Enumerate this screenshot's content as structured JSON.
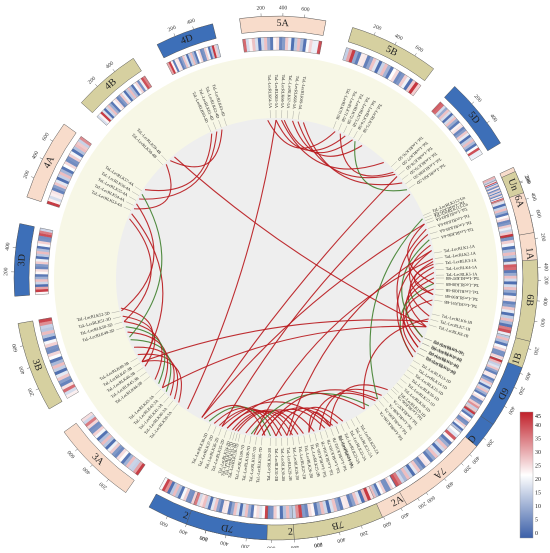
{
  "colors": {
    "ring_bg": "#f7f7e6",
    "inner_bg": "#eeeeee",
    "link_red": "#b8171c",
    "link_green": "#3f7f2e",
    "box_fill_A": "#f8dccb",
    "box_fill_B": "#d6d0a0",
    "box_fill_D": "#3d6fb8",
    "heat_low": "#3b5fa8",
    "heat_mid": "#ffffff",
    "heat_high": "#c0202a"
  },
  "chromosomes": [
    {
      "name": "1A",
      "start": 75,
      "end": 94,
      "ticks": [
        "200",
        "400"
      ]
    },
    {
      "name": "1B",
      "start": 100,
      "end": 117,
      "ticks": [
        "200",
        "400"
      ]
    },
    {
      "name": "1D",
      "start": 123,
      "end": 137,
      "ticks": [
        "200",
        "400"
      ]
    },
    {
      "name": "2A",
      "start": 143,
      "end": 160,
      "ticks": [
        "200",
        "400",
        "600"
      ]
    },
    {
      "name": "2B",
      "start": 166,
      "end": 186,
      "ticks": [
        "200",
        "400",
        "600"
      ]
    },
    {
      "name": "2D",
      "start": 191,
      "end": 209,
      "ticks": [
        "200",
        "400",
        "600"
      ]
    },
    {
      "name": "3A",
      "start": 215,
      "end": 234,
      "ticks": [
        "200",
        "400",
        "600"
      ]
    },
    {
      "name": "3B",
      "start": 240,
      "end": 260,
      "ticks": [
        "200",
        "400",
        "600"
      ]
    },
    {
      "name": "3D",
      "start": 266,
      "end": 282,
      "ticks": [
        "200",
        "400"
      ]
    },
    {
      "name": "4A",
      "start": 288,
      "end": 306,
      "ticks": [
        "200",
        "400",
        "600"
      ]
    },
    {
      "name": "4B",
      "start": 312,
      "end": 327,
      "ticks": [
        "200",
        "400"
      ]
    },
    {
      "name": "4D",
      "start": 333,
      "end": 346,
      "ticks": [
        "200",
        "400"
      ]
    },
    {
      "name": "5A",
      "start": 352,
      "end": 371,
      "ticks": [
        "200",
        "400",
        "600"
      ]
    },
    {
      "name": "5B",
      "start": 377,
      "end": 397,
      "ticks": [
        "200",
        "400",
        "600"
      ]
    },
    {
      "name": "5D",
      "start": 403,
      "end": 419,
      "ticks": [
        "200",
        "400"
      ]
    },
    {
      "name": "6A",
      "start": 425,
      "end": 440,
      "ticks": [
        "200",
        "400",
        "600"
      ]
    },
    {
      "name": "6B",
      "start": 446,
      "end": 464,
      "ticks": [
        "200",
        "400",
        "600"
      ]
    },
    {
      "name": "6D",
      "start": 470,
      "end": 484,
      "ticks": [
        "200",
        "400"
      ]
    },
    {
      "name": "7A",
      "start": 490,
      "end": 510,
      "ticks": [
        "200",
        "400",
        "600"
      ]
    },
    {
      "name": "7B",
      "start": 516,
      "end": 536,
      "ticks": [
        "200",
        "400",
        "600"
      ]
    },
    {
      "name": "7D",
      "start": 542,
      "end": 560,
      "ticks": [
        "200",
        "400",
        "600"
      ]
    },
    {
      "name": "Un",
      "start": 66,
      "end": 71,
      "ticks": [
        "200"
      ]
    }
  ],
  "gene_labels": [
    {
      "text": "TaL-LecRLK1-1A",
      "a": 81
    },
    {
      "text": "TaL-LecRLK2-1A",
      "a": 83
    },
    {
      "text": "TaL-LecRLK3-1A",
      "a": 85
    },
    {
      "text": "TaL-LecRLK4-1A",
      "a": 87
    },
    {
      "text": "TaL-LecRLK5-1A",
      "a": 89
    },
    {
      "text": "TaL-LecRLK6-1B",
      "a": 103
    },
    {
      "text": "TaL-LecRLK7-1B",
      "a": 105
    },
    {
      "text": "TaL-LecRLK8-1B",
      "a": 107
    },
    {
      "text": "TaL-LecRLK9-1D",
      "a": 112
    },
    {
      "text": "TaL-LecRLK10-1D",
      "a": 114
    },
    {
      "text": "TaL-LecRLK11-1D",
      "a": 116
    },
    {
      "text": "TaL-LecRLK12-1D",
      "a": 118
    },
    {
      "text": "TaL-LecRLK13-1D",
      "a": 121
    },
    {
      "text": "TaL-LecRLK14-1D",
      "a": 123
    },
    {
      "text": "TaL-LecRLK15-1D",
      "a": 125
    },
    {
      "text": "TaL-LecRLK16-1D",
      "a": 127
    },
    {
      "text": "TaL-LecRLK17-1D",
      "a": 129
    },
    {
      "text": "TaL-LecRLK18-1D",
      "a": 131
    },
    {
      "text": "TaL-LecRLK19-1D",
      "a": 133
    },
    {
      "text": "TaL-LecRLK20-2A",
      "a": 150
    },
    {
      "text": "TaL-LecRLK21-2A",
      "a": 152
    },
    {
      "text": "TaL-LecRLK22-2A",
      "a": 154
    },
    {
      "text": "TaL-LecRLK23-2A",
      "a": 156
    },
    {
      "text": "TaL-LecRLK24-2A",
      "a": 158
    },
    {
      "text": "TaL-LecRLK25-2B",
      "a": 168
    },
    {
      "text": "TaL-LecRLK26-2B",
      "a": 170
    },
    {
      "text": "TaL-LecRLK27-2B",
      "a": 172
    },
    {
      "text": "TaL-LecRLK28-2B",
      "a": 174
    },
    {
      "text": "TaL-LecRLK29-2B",
      "a": 176
    },
    {
      "text": "TaL-LecRLK30-2B",
      "a": 178
    },
    {
      "text": "TaL-LecRLK31-2B",
      "a": 180
    },
    {
      "text": "TaL-LecRLK32-2B",
      "a": 182
    },
    {
      "text": "TaL-LecRLK33-2D",
      "a": 194
    },
    {
      "text": "TaL-LecRLK34-2D",
      "a": 196
    },
    {
      "text": "TaL-LecRLK35-2D",
      "a": 198
    },
    {
      "text": "TaL-LecRLK36-2D",
      "a": 200
    },
    {
      "text": "TaL-LecRLK37-2D",
      "a": 202
    },
    {
      "text": "TaL-LecRLK38-2D",
      "a": 204
    },
    {
      "text": "TaL-LecRLK39-3A",
      "a": 218
    },
    {
      "text": "TaL-LecRLK40-3A",
      "a": 220
    },
    {
      "text": "TaL-LecRLK41-3A",
      "a": 222
    },
    {
      "text": "TaL-LecRLK42-3A",
      "a": 224
    },
    {
      "text": "TaL-LecRLK43-3A",
      "a": 226
    },
    {
      "text": "TaL-LecRLK44-3B",
      "a": 232
    },
    {
      "text": "TaL-LecRLK45-3B",
      "a": 234
    },
    {
      "text": "TaL-LecRLK46-3B",
      "a": 236
    },
    {
      "text": "TaL-LecRLK47-3B",
      "a": 238
    },
    {
      "text": "TaL-LecRLK48-3B",
      "a": 240
    },
    {
      "text": "TaL-LecRLK49-3D",
      "a": 252
    },
    {
      "text": "TaL-LecRLK50-3D",
      "a": 254
    },
    {
      "text": "TaL-LecRLK51-3D",
      "a": 256
    },
    {
      "text": "TaL-LecRLK52-3D",
      "a": 258
    },
    {
      "text": "TaL-LecRLK53-4A",
      "a": 295
    },
    {
      "text": "TaL-LecRLK54-4A",
      "a": 297
    },
    {
      "text": "TaL-LecRLK55-4A",
      "a": 299
    },
    {
      "text": "TaL-LecRLK56-4A",
      "a": 301
    },
    {
      "text": "TaL-LecRLK57-4A",
      "a": 303
    },
    {
      "text": "TaL-LecRLK58-4B",
      "a": 315
    },
    {
      "text": "TaL-LecRLK59-4B",
      "a": 317
    },
    {
      "text": "TaL-LecRLK60-4D",
      "a": 336
    },
    {
      "text": "TaL-LecRLK61-4D",
      "a": 338
    },
    {
      "text": "TaL-LecRLK62-4D",
      "a": 340
    },
    {
      "text": "TaL-LecRLK63-4D",
      "a": 342
    },
    {
      "text": "TaL-LecRLK64-5A",
      "a": 358
    },
    {
      "text": "TaL-LecRLK65-5A",
      "a": 360
    },
    {
      "text": "TaL-LecRLK66-5A",
      "a": 362
    },
    {
      "text": "TaL-LecRLK67-5A",
      "a": 364
    },
    {
      "text": "TaL-LecRLK68-5A",
      "a": 366
    },
    {
      "text": "TaL-LecRLK69-5A",
      "a": 368
    },
    {
      "text": "TaL-LecRLK70-5B",
      "a": 381
    },
    {
      "text": "TaL-LecRLK71-5B",
      "a": 383
    },
    {
      "text": "TaL-LecRLK72-5B",
      "a": 385
    },
    {
      "text": "TaL-LecRLK73-5B",
      "a": 387
    },
    {
      "text": "TaL-LecRLK74-5B",
      "a": 389
    },
    {
      "text": "TaL-LecRLK75-5B",
      "a": 391
    },
    {
      "text": "TaL-LecRLK76-5D",
      "a": 406
    },
    {
      "text": "TaL-LecRLK77-5D",
      "a": 408
    },
    {
      "text": "TaL-LecRLK78-5D",
      "a": 410
    },
    {
      "text": "TaL-LecRLK79-5D",
      "a": 412
    },
    {
      "text": "TaL-LecRLK80-5D",
      "a": 414
    },
    {
      "text": "TaL-LecRLK81-5D",
      "a": 416
    },
    {
      "text": "TaL-LecRLK82-6A",
      "a": 428
    },
    {
      "text": "TaL-LecRLK83-6A",
      "a": 430
    },
    {
      "text": "TaL-LecRLK84-6A",
      "a": 432
    },
    {
      "text": "TaL-LecRLK85-6A",
      "a": 434
    },
    {
      "text": "TaL-LecRLK86-6A",
      "a": 436
    },
    {
      "text": "TaL-LecRLK87-6B",
      "a": 450
    },
    {
      "text": "TaL-LecRLK88-6B",
      "a": 452
    },
    {
      "text": "TaL-LecRLK89-6B",
      "a": 454
    },
    {
      "text": "TaL-LecRLK90-6B",
      "a": 456
    },
    {
      "text": "TaL-LecRLK91-6B",
      "a": 458
    },
    {
      "text": "TaL-LecRLK92-6D",
      "a": 472
    },
    {
      "text": "TaL-LecRLK93-6D",
      "a": 474
    },
    {
      "text": "TaL-LecRLK94-6D",
      "a": 476
    },
    {
      "text": "TaL-LecRLK95-6D",
      "a": 478
    },
    {
      "text": "TaL-LecRLK96-7A",
      "a": 494
    },
    {
      "text": "TaL-LecRLK97-7A",
      "a": 496
    },
    {
      "text": "TaL-LecRLK98-7A",
      "a": 498
    },
    {
      "text": "TaL-LecRLK99-7A",
      "a": 500
    },
    {
      "text": "TaL-LecRLK100-7A",
      "a": 502
    },
    {
      "text": "TaL-LecRLK101-7B",
      "a": 518
    },
    {
      "text": "TaL-LecRLK102-7B",
      "a": 520
    },
    {
      "text": "TaL-LecRLK103-7B",
      "a": 522
    },
    {
      "text": "TaL-LecRLK104-7B",
      "a": 524
    },
    {
      "text": "TaL-LecRLK105-7B",
      "a": 526
    },
    {
      "text": "TaL-LecRLK106-7D",
      "a": 545
    },
    {
      "text": "TaL-LecRLK107-7D",
      "a": 547
    },
    {
      "text": "TaL-LecRLK108-7D",
      "a": 549
    },
    {
      "text": "TaL-LecRLK109-7D",
      "a": 551
    },
    {
      "text": "TaL-LecRLK110-7D",
      "a": 553
    },
    {
      "text": "TaL-LecRLK111-7D",
      "a": 555
    },
    {
      "text": "TaL-LecRLK112-Un",
      "a": 67
    },
    {
      "text": "TaL-LecRLK113-Un",
      "a": 69
    }
  ],
  "links": [
    {
      "from": 86,
      "to": 108,
      "color": "red"
    },
    {
      "from": 88,
      "to": 112,
      "color": "red"
    },
    {
      "from": 90,
      "to": 116,
      "color": "red"
    },
    {
      "from": 84,
      "to": 104,
      "color": "red"
    },
    {
      "from": 92,
      "to": 120,
      "color": "green"
    },
    {
      "from": 85,
      "to": 96,
      "color": "red"
    },
    {
      "from": 155,
      "to": 175,
      "color": "red"
    },
    {
      "from": 157,
      "to": 180,
      "color": "red"
    },
    {
      "from": 159,
      "to": 185,
      "color": "red"
    },
    {
      "from": 176,
      "to": 198,
      "color": "red"
    },
    {
      "from": 178,
      "to": 201,
      "color": "red"
    },
    {
      "from": 180,
      "to": 203,
      "color": "red"
    },
    {
      "from": 182,
      "to": 205,
      "color": "green"
    },
    {
      "from": 174,
      "to": 196,
      "color": "red"
    },
    {
      "from": 160,
      "to": 200,
      "color": "red"
    },
    {
      "from": 172,
      "to": 194,
      "color": "red"
    },
    {
      "from": 184,
      "to": 207,
      "color": "red"
    },
    {
      "from": 218,
      "to": 238,
      "color": "red"
    },
    {
      "from": 220,
      "to": 241,
      "color": "red"
    },
    {
      "from": 222,
      "to": 244,
      "color": "red"
    },
    {
      "from": 224,
      "to": 247,
      "color": "green"
    },
    {
      "from": 226,
      "to": 250,
      "color": "red"
    },
    {
      "from": 236,
      "to": 256,
      "color": "red"
    },
    {
      "from": 238,
      "to": 259,
      "color": "red"
    },
    {
      "from": 230,
      "to": 254,
      "color": "red"
    },
    {
      "from": 228,
      "to": 252,
      "color": "green"
    },
    {
      "from": 357,
      "to": 382,
      "color": "red"
    },
    {
      "from": 360,
      "to": 386,
      "color": "red"
    },
    {
      "from": 363,
      "to": 389,
      "color": "red"
    },
    {
      "from": 366,
      "to": 393,
      "color": "red"
    },
    {
      "from": 368,
      "to": 409,
      "color": "red"
    },
    {
      "from": 370,
      "to": 413,
      "color": "red"
    },
    {
      "from": 384,
      "to": 408,
      "color": "red"
    },
    {
      "from": 390,
      "to": 416,
      "color": "green"
    },
    {
      "from": 362,
      "to": 403,
      "color": "red"
    },
    {
      "from": 430,
      "to": 452,
      "color": "red"
    },
    {
      "from": 434,
      "to": 456,
      "color": "red"
    },
    {
      "from": 438,
      "to": 460,
      "color": "red"
    },
    {
      "from": 454,
      "to": 474,
      "color": "red"
    },
    {
      "from": 458,
      "to": 478,
      "color": "red"
    },
    {
      "from": 432,
      "to": 476,
      "color": "red"
    },
    {
      "from": 436,
      "to": 472,
      "color": "green"
    },
    {
      "from": 440,
      "to": 480,
      "color": "red"
    },
    {
      "from": 495,
      "to": 520,
      "color": "red"
    },
    {
      "from": 498,
      "to": 524,
      "color": "red"
    },
    {
      "from": 501,
      "to": 528,
      "color": "red"
    },
    {
      "from": 522,
      "to": 547,
      "color": "red"
    },
    {
      "from": 526,
      "to": 551,
      "color": "red"
    },
    {
      "from": 530,
      "to": 555,
      "color": "red"
    },
    {
      "from": 504,
      "to": 549,
      "color": "green"
    },
    {
      "from": 500,
      "to": 545,
      "color": "red"
    },
    {
      "from": 506,
      "to": 558,
      "color": "red"
    },
    {
      "from": 296,
      "to": 316,
      "color": "red"
    },
    {
      "from": 300,
      "to": 338,
      "color": "red"
    },
    {
      "from": 318,
      "to": 340,
      "color": "red"
    },
    {
      "from": 304,
      "to": 336,
      "color": "red"
    },
    {
      "from": 292,
      "to": 254,
      "color": "red"
    },
    {
      "from": 298,
      "to": 258,
      "color": "red"
    },
    {
      "from": 294,
      "to": 238,
      "color": "red"
    },
    {
      "from": 302,
      "to": 248,
      "color": "green"
    },
    {
      "from": 208,
      "to": 410,
      "color": "red"
    },
    {
      "from": 188,
      "to": 443,
      "color": "red"
    },
    {
      "from": 176,
      "to": 440,
      "color": "red"
    },
    {
      "from": 200,
      "to": 418,
      "color": "red"
    },
    {
      "from": 214,
      "to": 360,
      "color": "red"
    },
    {
      "from": 108,
      "to": 320,
      "color": "red"
    },
    {
      "from": 238,
      "to": 466,
      "color": "red"
    },
    {
      "from": 146,
      "to": 465,
      "color": "red"
    },
    {
      "from": 168,
      "to": 520,
      "color": "red"
    },
    {
      "from": 70,
      "to": 208,
      "color": "red"
    },
    {
      "from": 68,
      "to": 500,
      "color": "green"
    },
    {
      "from": 226,
      "to": 468,
      "color": "red"
    }
  ],
  "legend": {
    "max_label": "45",
    "ticks": [
      "40",
      "35",
      "30",
      "25",
      "20",
      "15",
      "10",
      "5",
      "0"
    ]
  }
}
